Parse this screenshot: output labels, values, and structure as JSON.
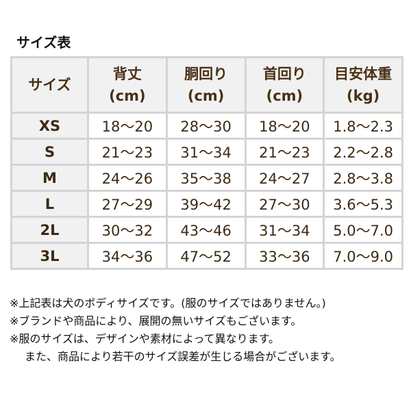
{
  "title": "サイズ表",
  "table": {
    "headers": [
      {
        "line1": "サイズ",
        "line2": ""
      },
      {
        "line1": "背丈",
        "line2": "(cm)"
      },
      {
        "line1": "胴回り",
        "line2": "(cm)"
      },
      {
        "line1": "首回り",
        "line2": "(cm)"
      },
      {
        "line1": "目安体重",
        "line2": "(kg)"
      }
    ],
    "rows": [
      [
        "XS",
        "18〜20",
        "28〜30",
        "18〜20",
        "1.8〜2.3"
      ],
      [
        "S",
        "21〜23",
        "31〜34",
        "21〜23",
        "2.2〜2.8"
      ],
      [
        "M",
        "24〜26",
        "35〜38",
        "24〜27",
        "2.8〜3.8"
      ],
      [
        "L",
        "27〜29",
        "39〜42",
        "27〜30",
        "3.6〜5.3"
      ],
      [
        "2L",
        "30〜32",
        "43〜46",
        "31〜34",
        "5.0〜7.0"
      ],
      [
        "3L",
        "34〜36",
        "47〜52",
        "33〜36",
        "7.0〜9.0"
      ]
    ]
  },
  "notes": [
    "※上記表は犬のボディサイズです。(服のサイズではありません。)",
    "※ブランドや商品により、展開の無いサイズもございます。",
    "※服のサイズは、デザインや素材によって異なります。",
    "また、商品により若干のサイズ誤差が生じる場合がございます。"
  ],
  "colors": {
    "header_bg": "#f1f1f1",
    "border": "#d4d4d4",
    "text_brown": "#4a3014"
  }
}
